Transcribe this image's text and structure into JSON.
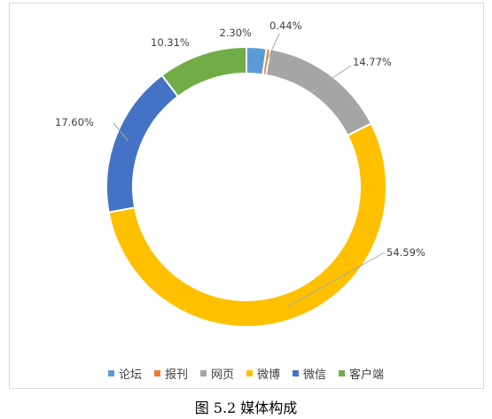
{
  "chart_data": {
    "type": "pie",
    "variant": "donut",
    "categories": [
      "论坛",
      "报刊",
      "网页",
      "微博",
      "微信",
      "客户端"
    ],
    "values": [
      2.3,
      0.44,
      14.77,
      54.59,
      17.6,
      10.31
    ],
    "labels": [
      "2.30%",
      "0.44%",
      "14.77%",
      "54.59%",
      "17.60%",
      "10.31%"
    ],
    "colors": [
      "#5B9BD5",
      "#ED7D31",
      "#A5A5A5",
      "#FFC000",
      "#4472C4",
      "#70AD47"
    ],
    "legend_position": "bottom"
  },
  "caption": "图 5.2  媒体构成"
}
